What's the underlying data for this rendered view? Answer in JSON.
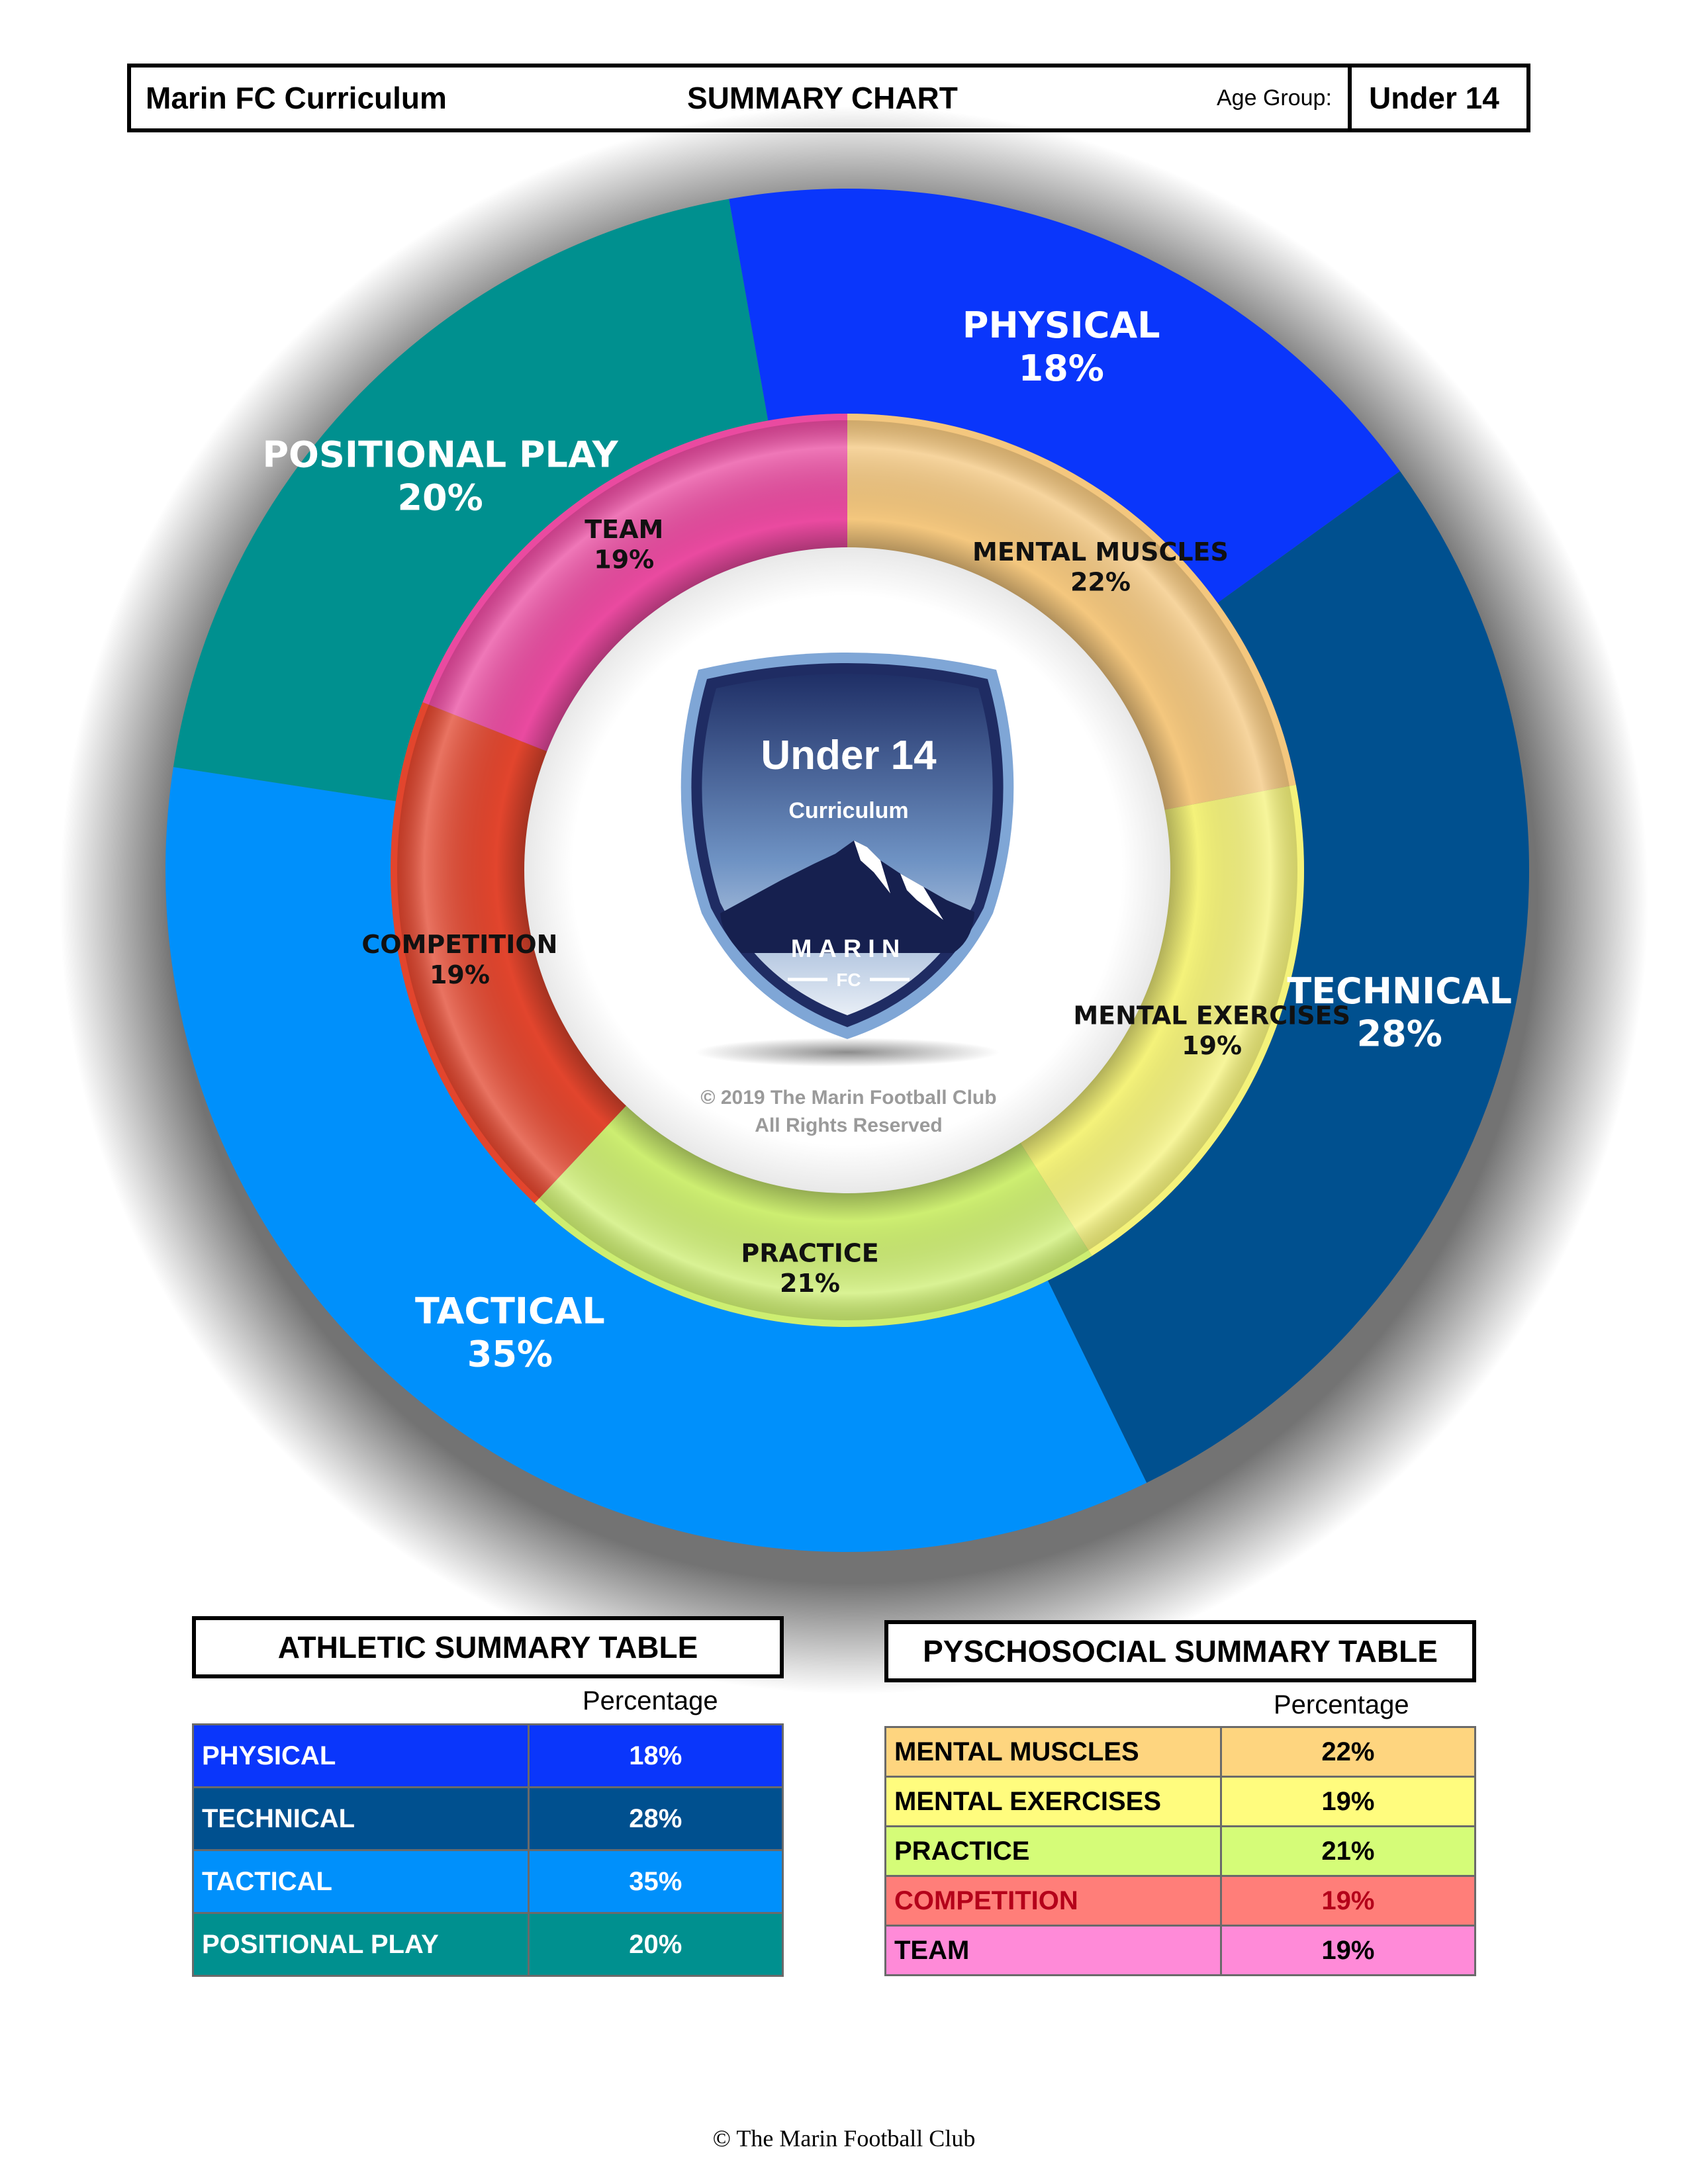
{
  "header": {
    "left_title": "Marin FC Curriculum",
    "center_title": "SUMMARY CHART",
    "age_label": "Age Group:",
    "age_value": "Under 14"
  },
  "badge": {
    "title": "Under 14",
    "subtitle": "Curriculum",
    "wordmark": "MARIN",
    "wordmark_sub": "FC",
    "copyright_line1": "© 2019 The Marin Football Club",
    "copyright_line2": "All Rights Reserved"
  },
  "chart_data": {
    "type": "pie",
    "outer_ring": [
      {
        "label": "PHYSICAL",
        "value": 18,
        "color": "#0a36fb"
      },
      {
        "label": "TECHNICAL",
        "value": 28,
        "color": "#00508f"
      },
      {
        "label": "TACTICAL",
        "value": 35,
        "color": "#0090fb"
      },
      {
        "label": "POSITIONAL PLAY",
        "value": 20,
        "color": "#00908f"
      }
    ],
    "inner_ring": [
      {
        "label": "MENTAL MUSCLES",
        "value": 22,
        "color": "#f4c77e"
      },
      {
        "label": "MENTAL EXERCISES",
        "value": 19,
        "color": "#f4f27a"
      },
      {
        "label": "PRACTICE",
        "value": 21,
        "color": "#cdee71"
      },
      {
        "label": "COMPETITION",
        "value": 19,
        "color": "#e2452d"
      },
      {
        "label": "TEAM",
        "value": 19,
        "color": "#ea4aa0"
      }
    ]
  },
  "athletic_table": {
    "title": "ATHLETIC SUMMARY TABLE",
    "column_header": "Percentage",
    "rows": [
      {
        "label": "PHYSICAL",
        "value": "18%",
        "color": "#0a36fb"
      },
      {
        "label": "TECHNICAL",
        "value": "28%",
        "color": "#00508f"
      },
      {
        "label": "TACTICAL",
        "value": "35%",
        "color": "#0090fb"
      },
      {
        "label": "POSITIONAL PLAY",
        "value": "20%",
        "color": "#00908f"
      }
    ]
  },
  "psychosocial_table": {
    "title": "PYSCHOSOCIAL SUMMARY TABLE",
    "column_header": "Percentage",
    "rows": [
      {
        "label": "MENTAL MUSCLES",
        "value": "22%",
        "color": "#fed57f"
      },
      {
        "label": "MENTAL EXERCISES",
        "value": "19%",
        "color": "#fffc7e"
      },
      {
        "label": "PRACTICE",
        "value": "21%",
        "color": "#d5fc78"
      },
      {
        "label": "COMPETITION",
        "value": "19%",
        "color": "#ff7e79"
      },
      {
        "label": "TEAM",
        "value": "19%",
        "color": "#ff8ad8"
      }
    ]
  },
  "footer": "© The Marin Football Club"
}
